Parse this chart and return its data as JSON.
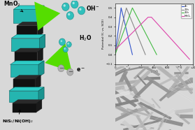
{
  "bg_color": "#d8d8d8",
  "panel_left": {
    "xlim": [
      0,
      10
    ],
    "ylim": [
      0,
      10
    ],
    "teal_dark": "#1a9490",
    "teal_light": "#2eccc6",
    "teal_mid": "#25b5b0",
    "black_dark": "#111111",
    "black_mid": "#2a2a2a",
    "arrow_green": "#55dd00",
    "arrow_green2": "#88ee00",
    "sphere_teal": "#30c0bc",
    "sphere_gray": "#aaaaaa",
    "text_color": "#111111"
  },
  "panel_graph": {
    "xlabel": "t (s)",
    "ylabel": "Potential (V, vs. SCE)",
    "xlim": [
      0,
      900
    ],
    "ylim": [
      -0.1,
      0.55
    ],
    "legend": [
      "4h",
      "12h",
      "36h",
      "MnO₂"
    ],
    "line_colors": [
      "#3355cc",
      "#888888",
      "#44bb44",
      "#dd44aa"
    ],
    "bg_color": "#f0f0f0",
    "xticks": [
      0,
      150,
      300,
      450,
      600,
      750,
      900
    ],
    "yticks": [
      -0.1,
      0.0,
      0.1,
      0.2,
      0.3,
      0.4,
      0.5
    ]
  },
  "panel_sem": {
    "bg_color": "#2a2a2a",
    "needle_grays": [
      0.55,
      0.65,
      0.75,
      0.8,
      0.85,
      0.9
    ],
    "seed": 42
  }
}
